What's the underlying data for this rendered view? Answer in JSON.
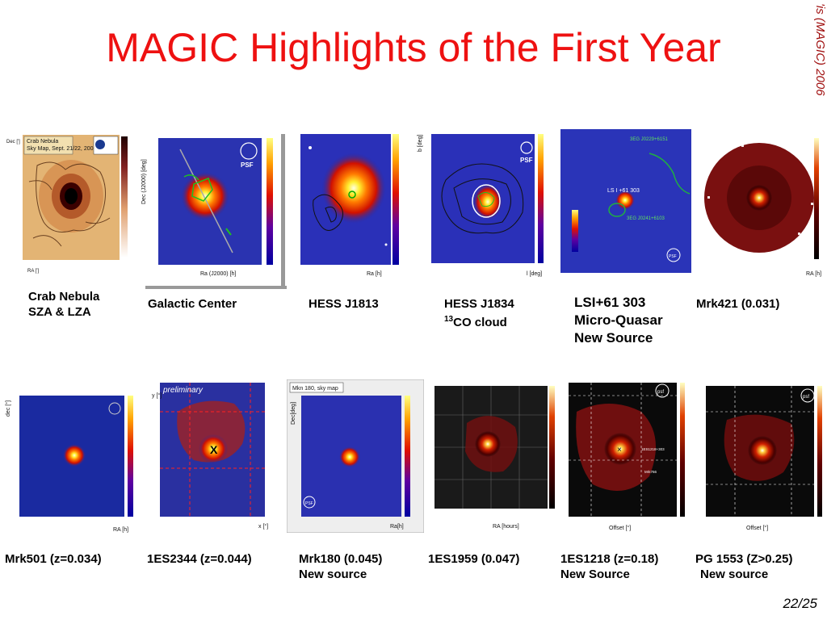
{
  "slide": {
    "title": "MAGIC Highlights of the First Year",
    "side_credit": "'is (MAGIC) 2006",
    "page": "22/25"
  },
  "row1": [
    {
      "caption1": "Crab Nebula",
      "caption2": "SZA & LZA",
      "inset1": "Crab Nebula",
      "inset2": "Sky Map, Sept. 21/22, 2004",
      "xlabel": "RA [']",
      "ylabel": "Dec [']"
    },
    {
      "caption1": "Galactic Center",
      "psf": "PSF",
      "xlabel": "Ra (J2000) [h]",
      "ylabel": "Dec (J2000) [deg]"
    },
    {
      "caption1": "HESS J1813",
      "xlabel": "Ra [h]"
    },
    {
      "caption1": "HESS J1834",
      "caption2_sup": "13",
      "caption2": "CO cloud",
      "psf": "PSF",
      "xlabel": "l [deg]",
      "ylabel": "b [deg]"
    },
    {
      "caption1": "LSI+61 303",
      "caption2": "Micro-Quasar",
      "caption3": "New Source",
      "label_src": "LS I +61 303",
      "label_3eg1": "3EG J0229+6151",
      "label_3eg2": "3EG J0241+6103",
      "psf": "PSF"
    },
    {
      "caption1": "Mrk421 (0.031)",
      "xlabel": "RA [h]"
    }
  ],
  "row2": [
    {
      "caption1": "Mrk501 (z=0.034)",
      "xlabel": "RA [h]",
      "ylabel": "dec [°]"
    },
    {
      "caption1": "1ES2344 (z=0.044)",
      "prelim": "preliminary",
      "xlabel": "x [°]",
      "ylabel": "y [°]"
    },
    {
      "caption1": "Mrk180 (0.045)",
      "caption2": "New source",
      "inset": "Mkn 180, sky map",
      "psf": "PSF",
      "xlabel": "Ra[h]",
      "ylabel": "Dec[deg]"
    },
    {
      "caption1": "1ES1959 (0.047)",
      "xlabel": "RA [hours]"
    },
    {
      "caption1": "1ES1218 (z=0.18)",
      "caption2": "New Source",
      "psf": "psf",
      "xlabel": "Offset [°]",
      "label_src": "1ES1218+303",
      "label_mrk": "Mrk766"
    },
    {
      "caption1": "PG 1553 (Z>0.25)",
      "caption2": "New source",
      "psf": "psf",
      "xlabel": "Offset [°]"
    }
  ]
}
